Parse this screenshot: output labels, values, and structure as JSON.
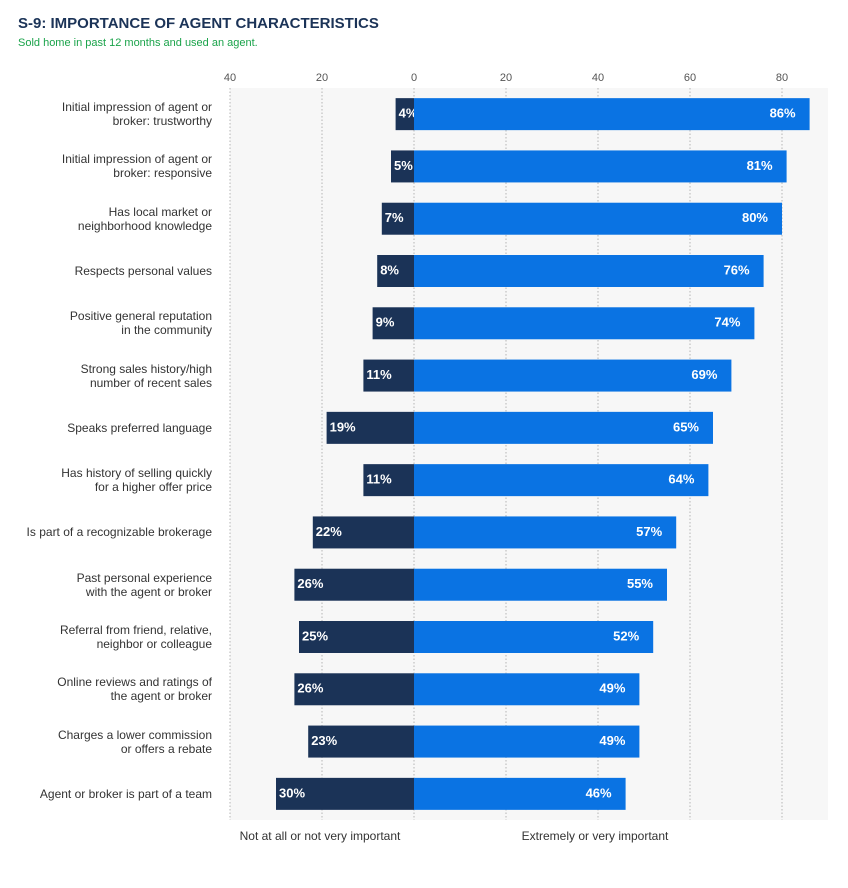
{
  "chart_data": {
    "type": "diverging-bar",
    "title": "S-9: IMPORTANCE OF AGENT CHARACTERISTICS",
    "subtitle": "Sold home in past 12 months and used an agent.",
    "categories": [
      "Initial impression of agent or\nbroker: trustworthy",
      "Initial impression of agent or\nbroker: responsive",
      "Has local market or\nneighborhood knowledge",
      "Respects personal values",
      "Positive general reputation\nin the community",
      "Strong sales history/high\nnumber of recent sales",
      "Speaks preferred language",
      "Has history of selling quickly\nfor a higher offer price",
      "Is part of a recognizable brokerage",
      "Past personal experience\nwith the agent or broker",
      "Referral from friend, relative,\nneighbor or colleague",
      "Online reviews and ratings of\nthe agent or broker",
      "Charges a lower commission\nor offers a rebate",
      "Agent or broker is part of a team"
    ],
    "series": [
      {
        "name": "Not at all or not very important",
        "color": "#1b3357",
        "values": [
          -4,
          -5,
          -7,
          -8,
          -9,
          -11,
          -19,
          -11,
          -22,
          -26,
          -25,
          -26,
          -23,
          -30
        ],
        "value_labels": [
          "4%",
          "5%",
          "7%",
          "8%",
          "9%",
          "11%",
          "19%",
          "11%",
          "22%",
          "26%",
          "25%",
          "26%",
          "23%",
          "30%"
        ]
      },
      {
        "name": "Extremely or very important",
        "color": "#0a73e3",
        "values": [
          86,
          81,
          80,
          76,
          74,
          69,
          65,
          64,
          57,
          55,
          52,
          49,
          49,
          46
        ],
        "value_labels": [
          "86%",
          "81%",
          "80%",
          "76%",
          "74%",
          "69%",
          "65%",
          "64%",
          "57%",
          "55%",
          "52%",
          "49%",
          "49%",
          "46%"
        ]
      }
    ],
    "xlim": [
      -40,
      90
    ],
    "xticks": [
      {
        "value": -40,
        "label": "40"
      },
      {
        "value": -20,
        "label": "20"
      },
      0,
      20,
      40,
      60,
      80
    ],
    "grid": true
  }
}
